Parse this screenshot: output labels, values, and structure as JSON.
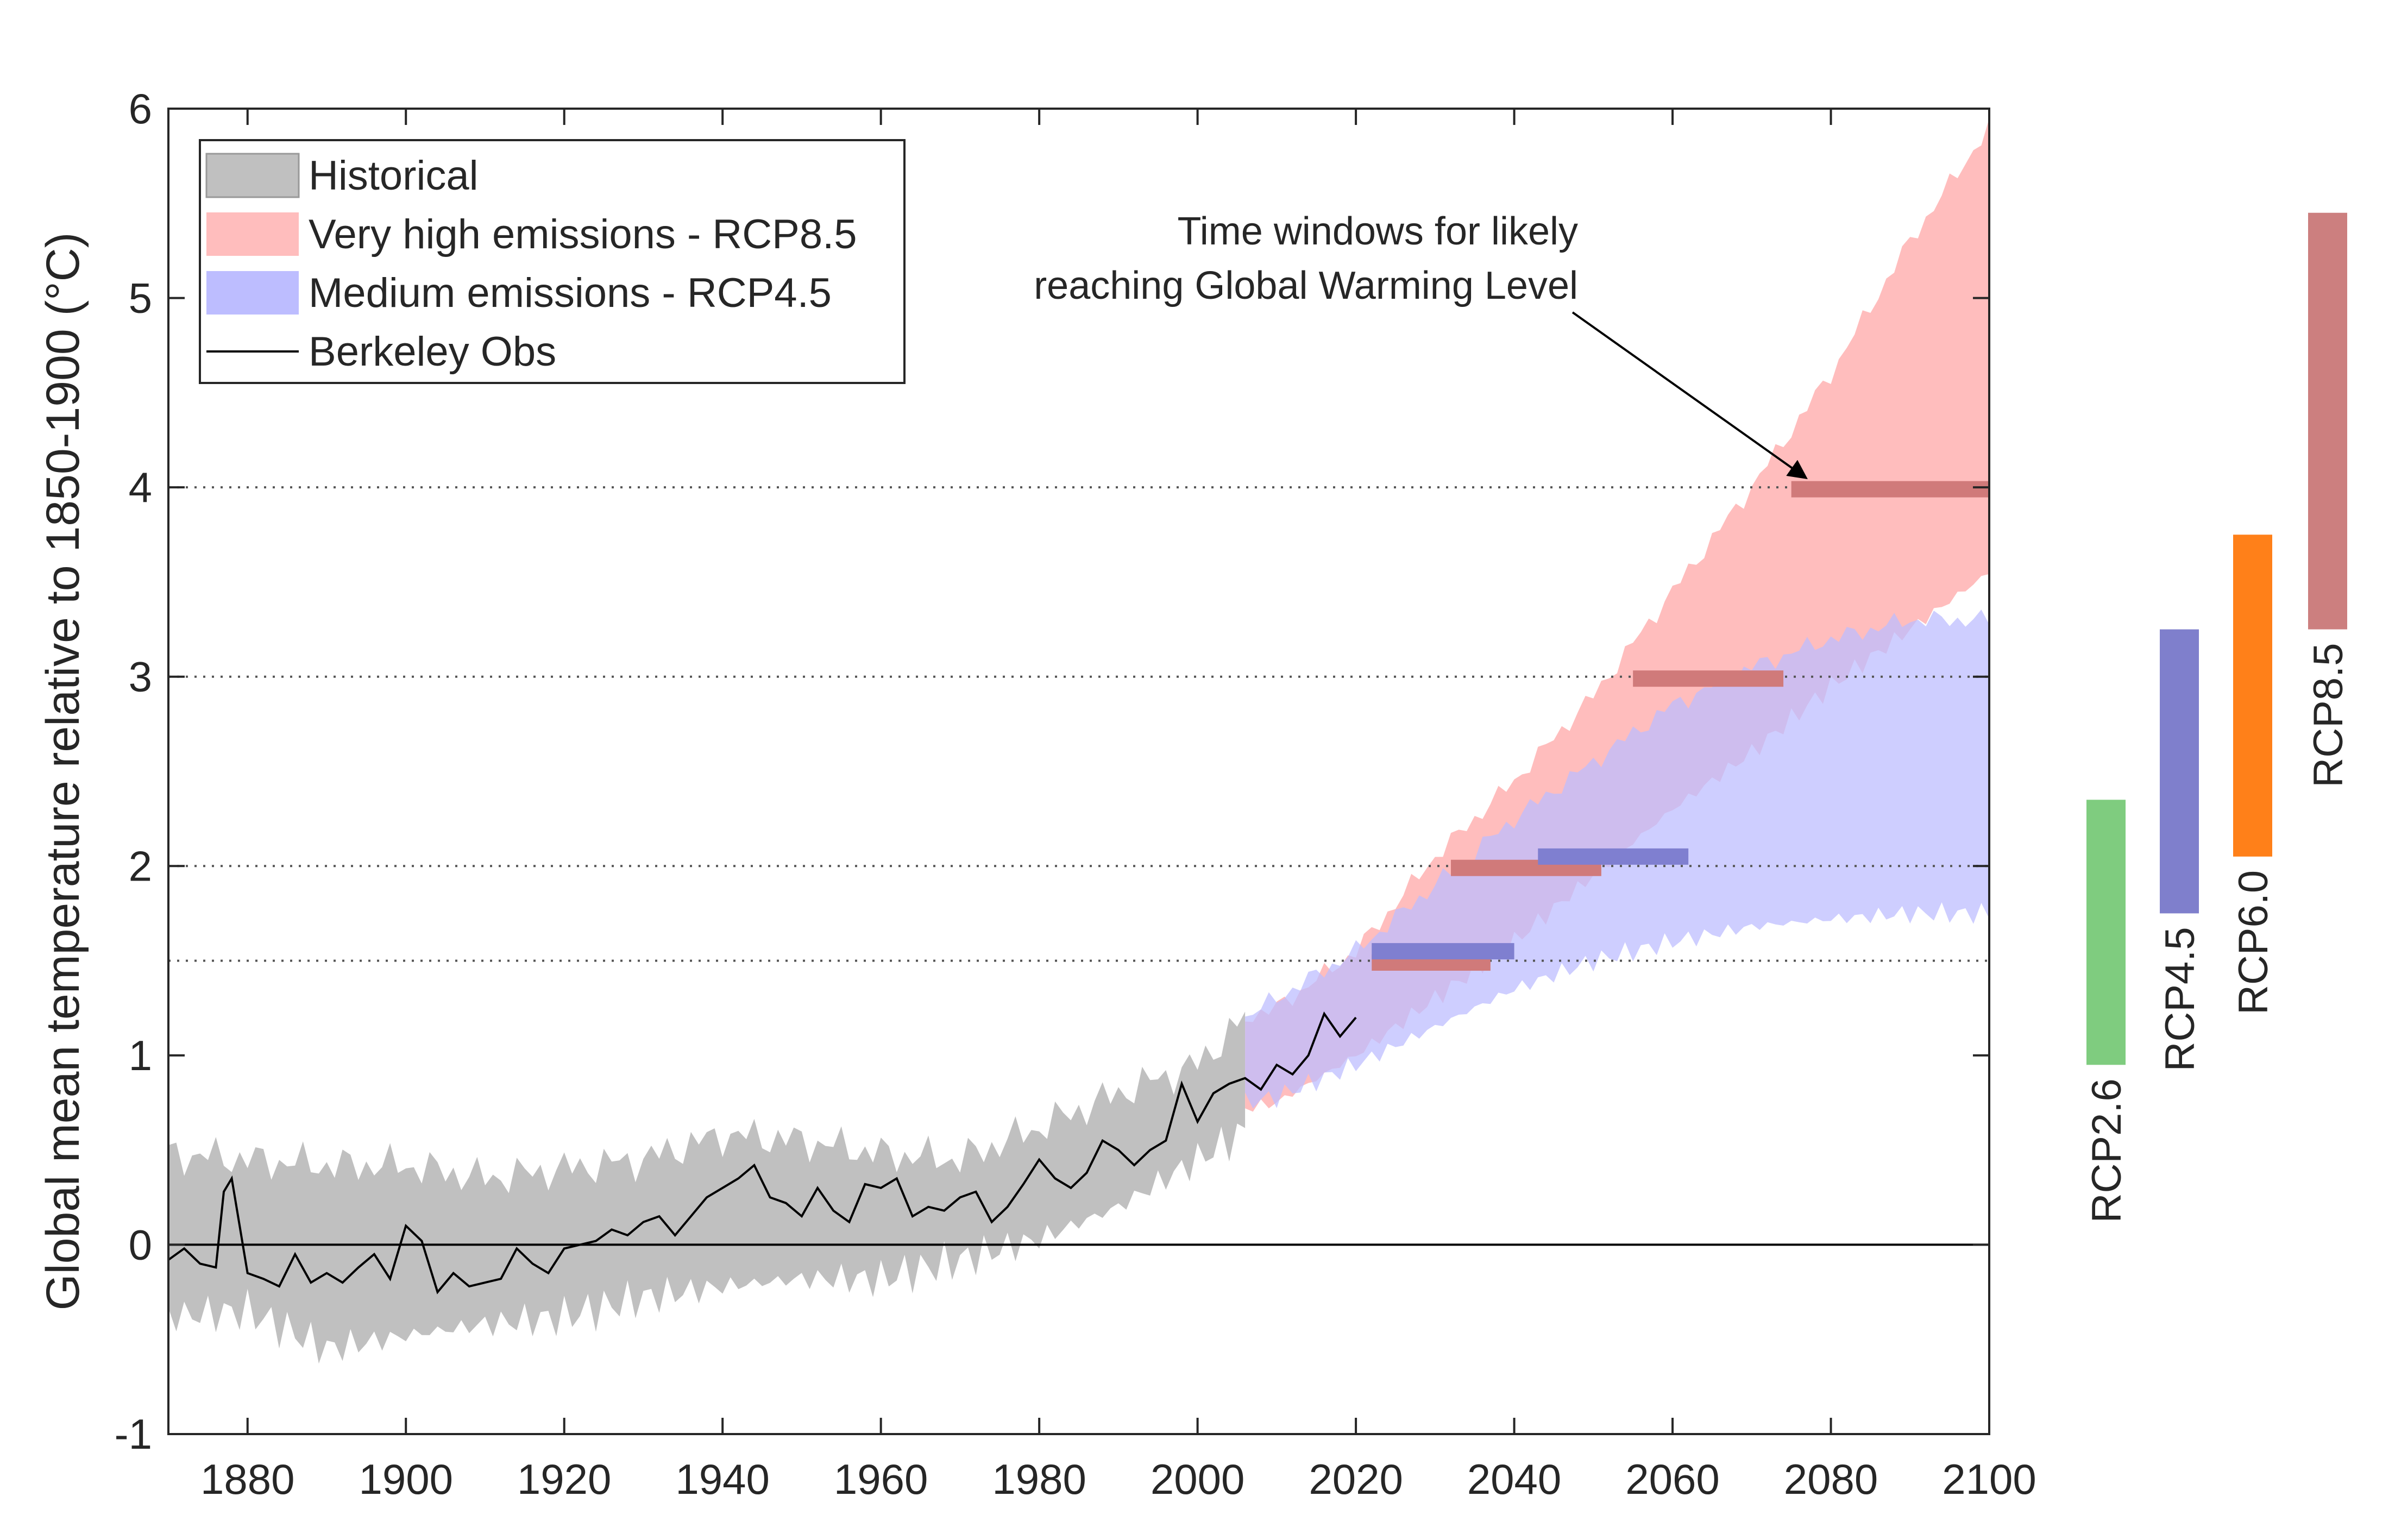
{
  "chart_data": {
    "type": "area",
    "title": "",
    "xlabel": "",
    "ylabel": "Global mean temperature relative to 1850-1900 (°C)",
    "xlim": [
      1870,
      2100
    ],
    "ylim": [
      -1,
      6
    ],
    "x_ticks": [
      "1880",
      "1900",
      "1920",
      "1940",
      "1960",
      "1980",
      "2000",
      "2020",
      "2040",
      "2060",
      "2080",
      "2100"
    ],
    "y_ticks": [
      "-1",
      "0",
      "1",
      "2",
      "3",
      "4",
      "5",
      "6"
    ],
    "gwl_reference_lines": [
      1.5,
      2,
      3,
      4
    ],
    "legend": {
      "placement": "top-left",
      "entries": [
        {
          "label": "Historical",
          "color": "#c0c0c0",
          "kind": "band"
        },
        {
          "label": "Very high emissions - RCP8.5",
          "color": "#ffbdbd",
          "kind": "band"
        },
        {
          "label": "Medium emissions - RCP4.5",
          "color": "#bdbdff",
          "kind": "band"
        },
        {
          "label": "Berkeley Obs",
          "color": "#000000",
          "kind": "line"
        }
      ]
    },
    "annotation": {
      "line1": "Time windows for likely",
      "line2": "reaching Global Warming Level"
    },
    "series": [
      {
        "name": "Historical",
        "kind": "band",
        "color": "#c0c0c0",
        "x": [
          1870,
          1880,
          1890,
          1900,
          1910,
          1920,
          1930,
          1940,
          1950,
          1960,
          1970,
          1980,
          1990,
          2000,
          2006
        ],
        "lower": [
          -0.38,
          -0.35,
          -0.55,
          -0.48,
          -0.42,
          -0.38,
          -0.28,
          -0.22,
          -0.18,
          -0.18,
          -0.08,
          0.03,
          0.2,
          0.45,
          0.6
        ],
        "upper": [
          0.48,
          0.45,
          0.42,
          0.42,
          0.35,
          0.4,
          0.45,
          0.58,
          0.55,
          0.48,
          0.45,
          0.62,
          0.8,
          0.95,
          1.2
        ]
      },
      {
        "name": "Very high emissions - RCP8.5",
        "kind": "band",
        "color": "#ffbdbd",
        "x": [
          2006,
          2010,
          2020,
          2030,
          2040,
          2050,
          2060,
          2070,
          2080,
          2090,
          2100
        ],
        "lower": [
          0.72,
          0.75,
          1.0,
          1.3,
          1.6,
          1.95,
          2.3,
          2.6,
          2.95,
          3.25,
          3.55
        ],
        "upper": [
          1.2,
          1.25,
          1.55,
          2.05,
          2.45,
          2.9,
          3.45,
          4.0,
          4.6,
          5.3,
          5.9
        ]
      },
      {
        "name": "Medium emissions - RCP4.5",
        "kind": "band",
        "color": "#bdbdff",
        "x": [
          2006,
          2010,
          2020,
          2030,
          2040,
          2050,
          2060,
          2070,
          2080,
          2090,
          2100
        ],
        "lower": [
          0.75,
          0.78,
          0.95,
          1.15,
          1.35,
          1.5,
          1.6,
          1.68,
          1.72,
          1.75,
          1.75
        ],
        "upper": [
          1.2,
          1.3,
          1.55,
          1.9,
          2.25,
          2.55,
          2.85,
          3.05,
          3.2,
          3.3,
          3.3
        ]
      },
      {
        "name": "Berkeley Obs",
        "kind": "line",
        "color": "#000000",
        "x": [
          1870,
          1872,
          1874,
          1876,
          1877,
          1878,
          1880,
          1882,
          1884,
          1886,
          1888,
          1890,
          1892,
          1894,
          1896,
          1898,
          1900,
          1902,
          1904,
          1906,
          1908,
          1910,
          1912,
          1914,
          1916,
          1918,
          1920,
          1922,
          1924,
          1926,
          1928,
          1930,
          1932,
          1934,
          1936,
          1938,
          1940,
          1942,
          1944,
          1946,
          1948,
          1950,
          1952,
          1954,
          1956,
          1958,
          1960,
          1962,
          1964,
          1966,
          1968,
          1970,
          1972,
          1974,
          1976,
          1978,
          1980,
          1982,
          1984,
          1986,
          1988,
          1990,
          1992,
          1994,
          1996,
          1998,
          2000,
          2002,
          2004,
          2006,
          2008,
          2010,
          2012,
          2014,
          2016,
          2018,
          2020
        ],
        "y": [
          -0.08,
          -0.02,
          -0.1,
          -0.12,
          0.28,
          0.35,
          -0.15,
          -0.18,
          -0.22,
          -0.05,
          -0.2,
          -0.15,
          -0.2,
          -0.12,
          -0.05,
          -0.18,
          0.1,
          0.02,
          -0.25,
          -0.15,
          -0.22,
          -0.2,
          -0.18,
          -0.02,
          -0.1,
          -0.15,
          -0.02,
          0.0,
          0.02,
          0.08,
          0.05,
          0.12,
          0.15,
          0.05,
          0.15,
          0.25,
          0.3,
          0.35,
          0.42,
          0.25,
          0.22,
          0.15,
          0.3,
          0.18,
          0.12,
          0.32,
          0.3,
          0.35,
          0.15,
          0.2,
          0.18,
          0.25,
          0.28,
          0.12,
          0.2,
          0.32,
          0.45,
          0.35,
          0.3,
          0.38,
          0.55,
          0.5,
          0.42,
          0.5,
          0.55,
          0.85,
          0.65,
          0.8,
          0.85,
          0.88,
          0.82,
          0.95,
          0.9,
          1.0,
          1.22,
          1.1,
          1.2
        ]
      }
    ],
    "gwl_time_windows": [
      {
        "scenario": "RCP8.5",
        "level": 1.5,
        "x_start": 2022,
        "x_end": 2037,
        "color": "#d07a7a"
      },
      {
        "scenario": "RCP4.5",
        "level": 1.5,
        "x_start": 2022,
        "x_end": 2040,
        "color": "#7f7fd0"
      },
      {
        "scenario": "RCP8.5",
        "level": 2,
        "x_start": 2032,
        "x_end": 2051,
        "color": "#d07a7a"
      },
      {
        "scenario": "RCP4.5",
        "level": 2,
        "x_start": 2043,
        "x_end": 2062,
        "color": "#7f7fd0"
      },
      {
        "scenario": "RCP8.5",
        "level": 3,
        "x_start": 2055,
        "x_end": 2074,
        "color": "#d07a7a"
      },
      {
        "scenario": "RCP8.5",
        "level": 4,
        "x_start": 2075,
        "x_end": 2100,
        "color": "#d07a7a"
      }
    ],
    "range_bars": [
      {
        "label": "RCP2.6",
        "low": 0.95,
        "high": 2.35,
        "color": "#7fcc7f"
      },
      {
        "label": "RCP4.5",
        "low": 1.75,
        "high": 3.25,
        "color": "#7f7fcc"
      },
      {
        "label": "RCP6.0",
        "low": 2.05,
        "high": 3.75,
        "color": "#ff8019"
      },
      {
        "label": "RCP8.5",
        "low": 3.25,
        "high": 5.45,
        "color": "#cc7f7f"
      }
    ]
  }
}
